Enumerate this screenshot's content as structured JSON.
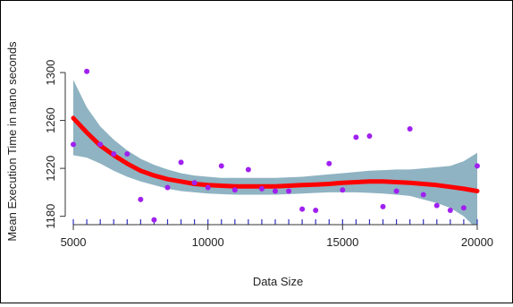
{
  "chart_data": {
    "type": "scatter",
    "xlabel": "Data Size",
    "ylabel": "Mean Execution Time in nano seconds",
    "xlim": [
      4700,
      20300
    ],
    "ylim": [
      1173,
      1312
    ],
    "x_ticks": [
      5000,
      10000,
      15000,
      20000
    ],
    "y_ticks": [
      1180,
      1220,
      1260,
      1300
    ],
    "grid": false,
    "box": "left-and-bottom",
    "colors": {
      "points": "#a020f0",
      "smooth_line": "#ff0000",
      "confidence_band": "#8fb3c2",
      "rug": "#3030c0",
      "axis": "#333333"
    },
    "points": [
      {
        "x": 5000,
        "y": 1240
      },
      {
        "x": 5500,
        "y": 1301
      },
      {
        "x": 6000,
        "y": 1240
      },
      {
        "x": 6500,
        "y": 1232
      },
      {
        "x": 7000,
        "y": 1232
      },
      {
        "x": 7500,
        "y": 1194
      },
      {
        "x": 8000,
        "y": 1177
      },
      {
        "x": 8500,
        "y": 1204
      },
      {
        "x": 9000,
        "y": 1225
      },
      {
        "x": 9500,
        "y": 1208
      },
      {
        "x": 10000,
        "y": 1204
      },
      {
        "x": 10500,
        "y": 1222
      },
      {
        "x": 11000,
        "y": 1202
      },
      {
        "x": 11500,
        "y": 1219
      },
      {
        "x": 12000,
        "y": 1203
      },
      {
        "x": 12500,
        "y": 1201
      },
      {
        "x": 13000,
        "y": 1201
      },
      {
        "x": 13500,
        "y": 1186
      },
      {
        "x": 14000,
        "y": 1185
      },
      {
        "x": 14500,
        "y": 1224
      },
      {
        "x": 15000,
        "y": 1202
      },
      {
        "x": 15500,
        "y": 1246
      },
      {
        "x": 16000,
        "y": 1247
      },
      {
        "x": 16500,
        "y": 1188
      },
      {
        "x": 17000,
        "y": 1201
      },
      {
        "x": 17500,
        "y": 1253
      },
      {
        "x": 18000,
        "y": 1198
      },
      {
        "x": 18500,
        "y": 1189
      },
      {
        "x": 19000,
        "y": 1185
      },
      {
        "x": 19500,
        "y": 1187
      },
      {
        "x": 20000,
        "y": 1222
      }
    ],
    "smooth_line": {
      "x": [
        5000,
        5500,
        6000,
        6500,
        7000,
        7500,
        8000,
        8500,
        9000,
        9500,
        10000,
        10500,
        11000,
        11500,
        12000,
        12500,
        13000,
        13500,
        14000,
        14500,
        15000,
        15500,
        16000,
        16500,
        17000,
        17500,
        18000,
        18500,
        19000,
        19500,
        20000
      ],
      "y": [
        1262,
        1250,
        1239,
        1231,
        1224,
        1218,
        1214,
        1211,
        1209,
        1207,
        1206,
        1205.5,
        1205,
        1205,
        1205,
        1205,
        1205.5,
        1206,
        1206.5,
        1207,
        1208,
        1208.5,
        1209,
        1209,
        1208.5,
        1208,
        1207,
        1206,
        1204.5,
        1203,
        1201
      ]
    },
    "confidence_band": {
      "x": [
        5000,
        5500,
        6000,
        6500,
        7000,
        7500,
        8000,
        8500,
        9000,
        9500,
        10000,
        10500,
        11000,
        11500,
        12000,
        12500,
        13000,
        13500,
        14000,
        14500,
        15000,
        15500,
        16000,
        16500,
        17000,
        17500,
        18000,
        18500,
        19000,
        19500,
        20000
      ],
      "upper": [
        1294,
        1271,
        1255,
        1244,
        1235,
        1228,
        1223,
        1219,
        1216,
        1214,
        1213,
        1212,
        1212,
        1212,
        1212,
        1212,
        1212.5,
        1213,
        1214,
        1215,
        1216,
        1217,
        1218,
        1218.5,
        1219,
        1219,
        1220,
        1221,
        1222,
        1226,
        1233
      ],
      "lower": [
        1231,
        1229,
        1224,
        1218,
        1213,
        1209,
        1206,
        1203,
        1201,
        1200,
        1199,
        1198.5,
        1198,
        1198,
        1198,
        1198,
        1198.5,
        1199,
        1199.5,
        1200,
        1200,
        1200,
        1199.5,
        1199,
        1198,
        1197,
        1194,
        1191,
        1187,
        1180,
        1169
      ]
    },
    "rug_x": [
      5000,
      5500,
      6000,
      6500,
      7000,
      7500,
      8000,
      8500,
      9000,
      9500,
      10000,
      10500,
      11000,
      11500,
      12000,
      12500,
      13000,
      13500,
      14000,
      14500,
      15000,
      15500,
      16000,
      16500,
      17000,
      17500,
      18000,
      18500,
      19000,
      19500,
      20000
    ]
  }
}
